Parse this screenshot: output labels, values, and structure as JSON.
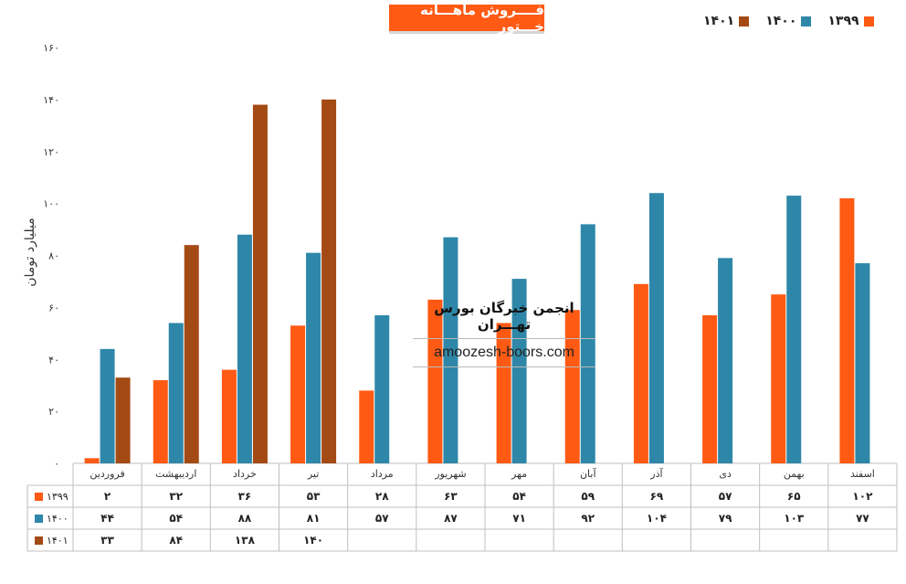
{
  "chart_data": {
    "type": "bar",
    "title": "فــــروش ماهـــانه خـــتور",
    "ylabel": "میلیارد تومان",
    "ylim": [
      0,
      160
    ],
    "y_ticks": [
      "۰",
      "۲۰",
      "۴۰",
      "۶۰",
      "۸۰",
      "۱۰۰",
      "۱۲۰",
      "۱۴۰",
      "۱۶۰"
    ],
    "categories": [
      "فروردین",
      "اردیبهشت",
      "خرداد",
      "تیر",
      "مرداد",
      "شهریور",
      "مهر",
      "آبان",
      "آذر",
      "دی",
      "بهمن",
      "اسفند"
    ],
    "series": [
      {
        "name": "۱۳۹۹",
        "color": "#ff5a14",
        "values": [
          2,
          32,
          36,
          53,
          28,
          63,
          54,
          59,
          69,
          57,
          65,
          102
        ]
      },
      {
        "name": "۱۴۰۰",
        "color": "#2e87a8",
        "values": [
          44,
          54,
          88,
          81,
          57,
          87,
          71,
          92,
          104,
          79,
          103,
          77
        ]
      },
      {
        "name": "۱۴۰۱",
        "color": "#a44a14",
        "values": [
          33,
          84,
          138,
          140,
          null,
          null,
          null,
          null,
          null,
          null,
          null,
          null
        ]
      }
    ],
    "table": {
      "rows": [
        [
          "۲",
          "۳۲",
          "۳۶",
          "۵۳",
          "۲۸",
          "۶۳",
          "۵۴",
          "۵۹",
          "۶۹",
          "۵۷",
          "۶۵",
          "۱۰۲"
        ],
        [
          "۴۴",
          "۵۴",
          "۸۸",
          "۸۱",
          "۵۷",
          "۸۷",
          "۷۱",
          "۹۲",
          "۱۰۴",
          "۷۹",
          "۱۰۳",
          "۷۷"
        ],
        [
          "۳۳",
          "۸۴",
          "۱۳۸",
          "۱۴۰",
          "",
          "",
          "",
          "",
          "",
          "",
          "",
          ""
        ]
      ]
    },
    "legend": "top-right",
    "grid": false
  },
  "watermark": {
    "title": "انجمن خبرگان بورس تهـــران",
    "site": "amoozesh-boors.com"
  }
}
